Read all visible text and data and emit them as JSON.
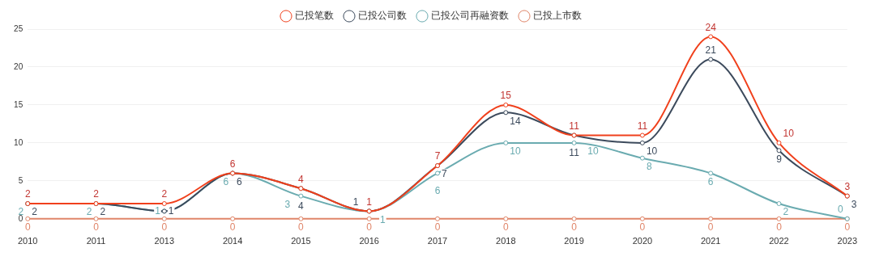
{
  "chart_data": {
    "type": "line",
    "categories": [
      "2010",
      "2011",
      "2013",
      "2014",
      "2015",
      "2016",
      "2017",
      "2018",
      "2019",
      "2020",
      "2021",
      "2022",
      "2023"
    ],
    "series": [
      {
        "name": "已投笔数",
        "color": "#f0401c",
        "values": [
          2,
          2,
          2,
          6,
          4,
          1,
          7,
          15,
          11,
          11,
          24,
          10,
          3
        ]
      },
      {
        "name": "已投公司数",
        "color": "#3c4a5c",
        "values": [
          2,
          2,
          1,
          6,
          4,
          1,
          7,
          14,
          11,
          10,
          21,
          9,
          3
        ]
      },
      {
        "name": "已投公司再融资数",
        "color": "#6aabb0",
        "values": [
          2,
          2,
          1,
          6,
          3,
          1,
          6,
          10,
          10,
          8,
          6,
          2,
          0
        ]
      },
      {
        "name": "已投上市数",
        "color": "#e0866a",
        "values": [
          0,
          0,
          0,
          0,
          0,
          0,
          0,
          0,
          0,
          0,
          0,
          0,
          0
        ]
      }
    ],
    "ylim": [
      0,
      25
    ],
    "yticks": [
      0,
      5,
      10,
      15,
      20,
      25
    ],
    "grid": "y",
    "legend": "top",
    "marker": "circle",
    "line_style": "solid",
    "data_labels": true
  }
}
